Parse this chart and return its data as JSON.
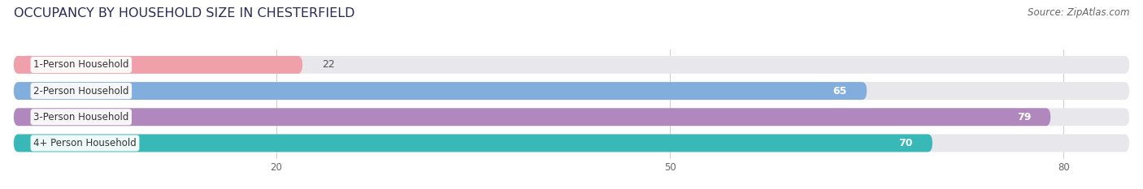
{
  "title": "OCCUPANCY BY HOUSEHOLD SIZE IN CHESTERFIELD",
  "source": "Source: ZipAtlas.com",
  "categories": [
    "1-Person Household",
    "2-Person Household",
    "3-Person Household",
    "4+ Person Household"
  ],
  "values": [
    22,
    65,
    79,
    70
  ],
  "bar_colors": [
    "#f0a0aa",
    "#82aedd",
    "#b088be",
    "#39b8b8"
  ],
  "background_color": "#ffffff",
  "bar_bg_color": "#e8e8ec",
  "bar_track_color": "#e8e8ec",
  "xlim": [
    0,
    85
  ],
  "xticks": [
    20,
    50,
    80
  ],
  "label_color_dark": "#555555",
  "label_color_white": "#ffffff",
  "title_fontsize": 11.5,
  "source_fontsize": 8.5,
  "bar_label_fontsize": 9,
  "category_fontsize": 8.5,
  "tick_fontsize": 8.5,
  "bar_height": 0.68,
  "figsize": [
    14.06,
    2.33
  ],
  "dpi": 100
}
